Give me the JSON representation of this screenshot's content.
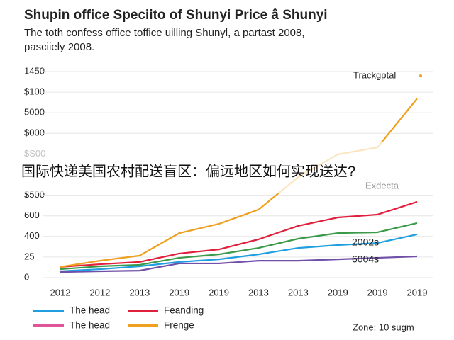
{
  "chart_data": {
    "type": "line",
    "title": "Shupin office Speciito of Shunyi Price â Shunyi",
    "subtitle": [
      "The toth confess office toffice uilling Shunyl, a partast 2008,",
      "pasciiely 2008."
    ],
    "overlay_text": "国际快递美国农村配送盲区：偏远地区如何实现送达?",
    "categories": [
      "2012",
      "2012",
      "2013",
      "2019",
      "2019",
      "2013",
      "2013",
      "2019",
      "2019",
      "2019"
    ],
    "ylim": [
      0,
      10
    ],
    "yticks": [
      0,
      {
        "value": 1,
        "label": "25"
      },
      {
        "value": 2,
        "label": "400"
      },
      {
        "value": 3,
        "label": "600"
      },
      {
        "value": 4,
        "label": "$500"
      },
      {
        "value": 6,
        "label": "$S00"
      },
      {
        "value": 7,
        "label": "$000"
      },
      {
        "value": 8,
        "label": "5000"
      },
      {
        "value": 9,
        "label": "$100"
      },
      {
        "value": 10,
        "label": "1450"
      }
    ],
    "grid": true,
    "series": [
      {
        "name": "The head",
        "color": "#1f9fe0",
        "values": [
          0.31,
          0.41,
          0.55,
          0.76,
          0.89,
          1.13,
          1.44,
          1.58,
          1.68,
          2.1
        ]
      },
      {
        "name": "Feanding",
        "color": "#e0203c",
        "values": [
          0.52,
          0.65,
          0.76,
          1.17,
          1.37,
          1.86,
          2.51,
          2.92,
          3.06,
          3.68
        ]
      },
      {
        "name": "The head",
        "color": "#7050a8",
        "legend_color": "#e0559a",
        "values": [
          0.27,
          0.31,
          0.34,
          0.69,
          0.69,
          0.82,
          0.82,
          0.89,
          0.96,
          1.03
        ]
      },
      {
        "name": "Frenge",
        "color": "#f0a020",
        "values": [
          0.52,
          0.82,
          1.07,
          2.16,
          2.61,
          3.3,
          4.88,
          5.98,
          6.32,
          8.69
        ]
      },
      {
        "color": "#3a9a4a",
        "values": [
          0.41,
          0.55,
          0.62,
          0.96,
          1.13,
          1.44,
          1.89,
          2.16,
          2.2,
          2.65
        ]
      }
    ],
    "annotations": [
      "Trackgptal",
      "Exdecta",
      "2002s",
      "6004s",
      "Zone: 10 sugm"
    ]
  }
}
